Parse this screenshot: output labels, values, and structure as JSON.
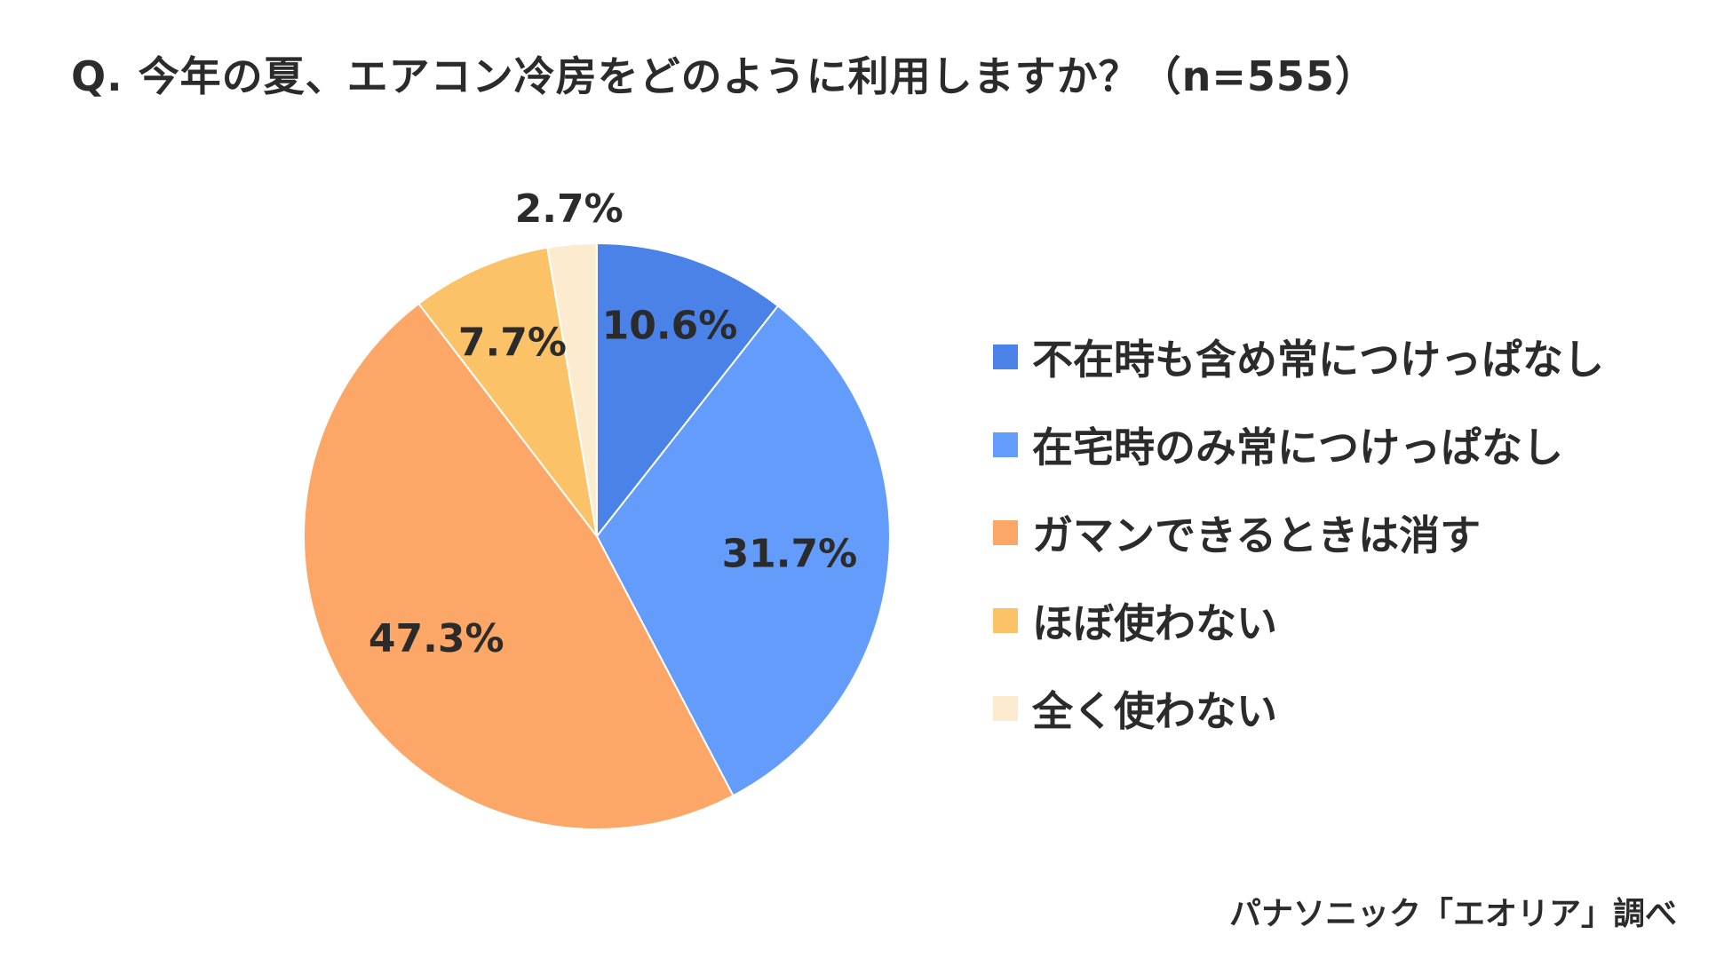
{
  "title": "Q. 今年の夏、エアコン冷房をどのように利用しますか？（n=555）",
  "source": "パナソニック「エオリア」調べ",
  "chart_data": {
    "type": "pie",
    "title": "Q. 今年の夏、エアコン冷房をどのように利用しますか？（n=555）",
    "n": 555,
    "start": "12 o'clock, clockwise",
    "legend_position": "right",
    "slices": [
      {
        "label": "不在時も含め常につけっぱなし",
        "value": 10.6,
        "display": "10.6%",
        "color": "#4a82e8"
      },
      {
        "label": "在宅時のみ常につけっぱなし",
        "value": 31.7,
        "display": "31.7%",
        "color": "#649cfb"
      },
      {
        "label": "ガマンできるときは消す",
        "value": 47.3,
        "display": "47.3%",
        "color": "#fca767"
      },
      {
        "label": "ほぼ使わない",
        "value": 7.7,
        "display": "7.7%",
        "color": "#fcc268"
      },
      {
        "label": "全く使わない",
        "value": 2.7,
        "display": "2.7%",
        "color": "#fdebd0"
      }
    ]
  }
}
